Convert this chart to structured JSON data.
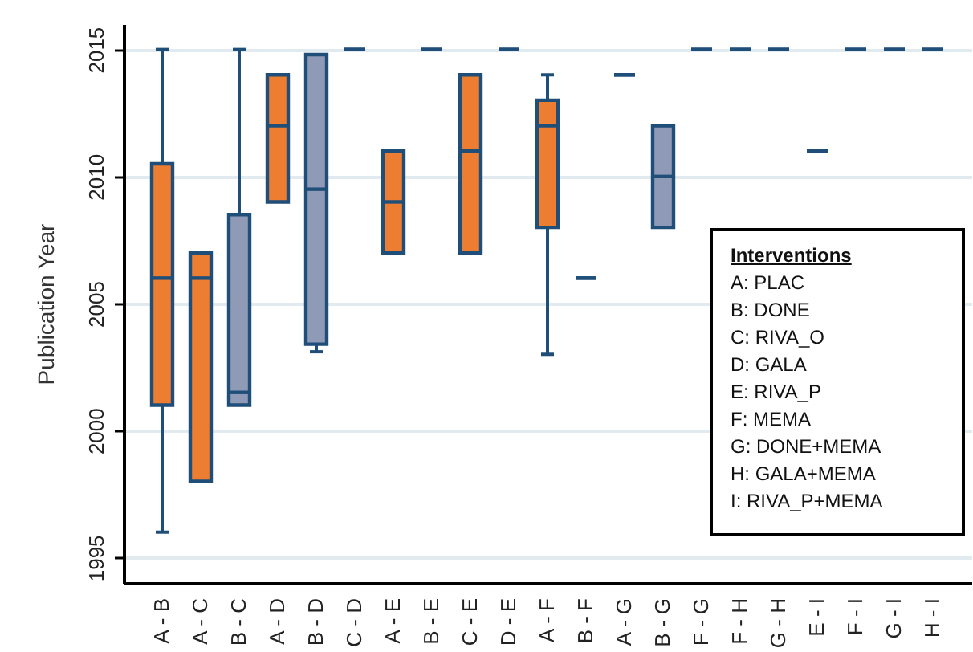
{
  "chart_data": {
    "type": "box",
    "ylabel": "Publication Year",
    "categories": [
      "A - B",
      "A - C",
      "B - C",
      "A - D",
      "B - D",
      "C - D",
      "A - E",
      "B - E",
      "C - E",
      "D - E",
      "A - F",
      "B - F",
      "A - G",
      "B - G",
      "F - G",
      "F - H",
      "G - H",
      "E - I",
      "F - I",
      "G - I",
      "H - I"
    ],
    "boxes": [
      {
        "low": 1996,
        "q1": 2001,
        "median": 2006,
        "q3": 2010.5,
        "high": 2015
      },
      {
        "low": 1998,
        "q1": 1998,
        "median": 2006,
        "q3": 2007,
        "high": 2007
      },
      {
        "low": 2001,
        "q1": 2001,
        "median": 2001.5,
        "q3": 2008.5,
        "high": 2015
      },
      {
        "low": 2009,
        "q1": 2009,
        "median": 2012,
        "q3": 2014,
        "high": 2014
      },
      {
        "low": 2003.1,
        "q1": 2003.4,
        "median": 2009.5,
        "q3": 2014.8,
        "high": 2014.8
      },
      {
        "low": 2015,
        "q1": 2015,
        "median": 2015,
        "q3": 2015,
        "high": 2015
      },
      {
        "low": 2007,
        "q1": 2007,
        "median": 2009,
        "q3": 2011,
        "high": 2011
      },
      {
        "low": 2015,
        "q1": 2015,
        "median": 2015,
        "q3": 2015,
        "high": 2015
      },
      {
        "low": 2007,
        "q1": 2007,
        "median": 2011,
        "q3": 2014,
        "high": 2014
      },
      {
        "low": 2015,
        "q1": 2015,
        "median": 2015,
        "q3": 2015,
        "high": 2015
      },
      {
        "low": 2003,
        "q1": 2008,
        "median": 2012,
        "q3": 2013,
        "high": 2014
      },
      {
        "low": 2006,
        "q1": 2006,
        "median": 2006,
        "q3": 2006,
        "high": 2006
      },
      {
        "low": 2014,
        "q1": 2014,
        "median": 2014,
        "q3": 2014,
        "high": 2014
      },
      {
        "low": 2008,
        "q1": 2008,
        "median": 2010,
        "q3": 2012,
        "high": 2012
      },
      {
        "low": 2015,
        "q1": 2015,
        "median": 2015,
        "q3": 2015,
        "high": 2015
      },
      {
        "low": 2015,
        "q1": 2015,
        "median": 2015,
        "q3": 2015,
        "high": 2015
      },
      {
        "low": 2015,
        "q1": 2015,
        "median": 2015,
        "q3": 2015,
        "high": 2015
      },
      {
        "low": 2011,
        "q1": 2011,
        "median": 2011,
        "q3": 2011,
        "high": 2011
      },
      {
        "low": 2015,
        "q1": 2015,
        "median": 2015,
        "q3": 2015,
        "high": 2015
      },
      {
        "low": 2015,
        "q1": 2015,
        "median": 2015,
        "q3": 2015,
        "high": 2015
      },
      {
        "low": 2015,
        "q1": 2015,
        "median": 2015,
        "q3": 2015,
        "high": 2015
      }
    ],
    "color": "#1f4e79",
    "colors": [
      "#ed7d31",
      "#ed7d31",
      "#8f9bb6",
      "#ed7d31",
      "#8f9bb6",
      null,
      "#ed7d31",
      null,
      "#ed7d31",
      null,
      "#ed7d31",
      null,
      null,
      "#8f9bb6",
      null,
      null,
      null,
      null,
      null,
      null,
      null
    ],
    "ylim": [
      1994,
      2016
    ],
    "yticks": [
      1995,
      2000,
      2005,
      2010,
      2015
    ],
    "grid": "y",
    "annotations": [
      "Interventions",
      "A: PLAC",
      "B: DONE",
      "C: RIVA_O",
      "D: GALA",
      "E: RIVA_P",
      "F: MEMA",
      "G: DONE+MEMA",
      "H: GALA+MEMA",
      "I: RIVA_P+MEMA"
    ]
  }
}
